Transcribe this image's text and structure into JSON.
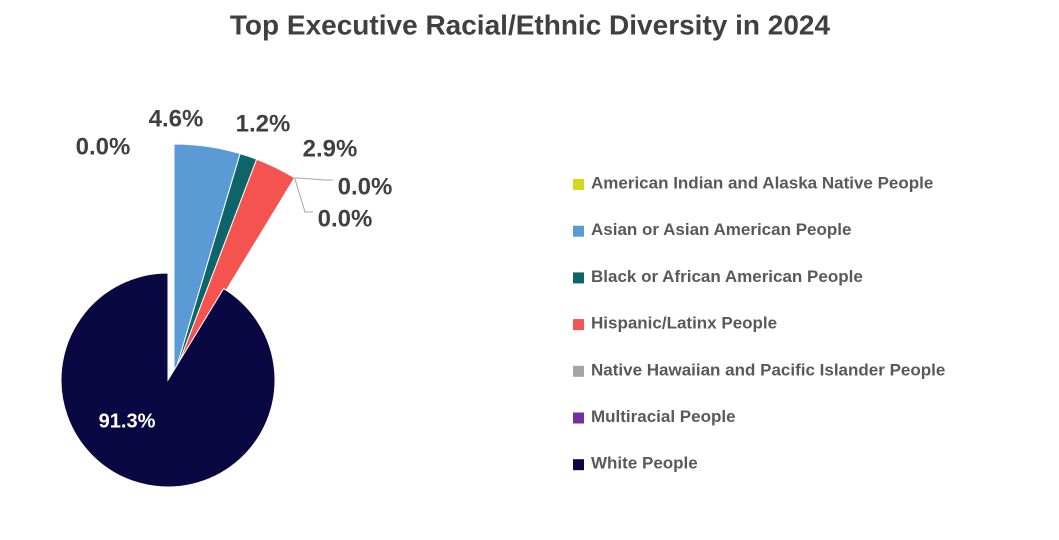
{
  "chart_data": {
    "type": "pie",
    "title": "Top Executive Racial/Ethnic Diversity in 2024",
    "categories": [
      "American Indian and Alaska Native People",
      "Asian or Asian American People",
      "Black or African American People",
      "Hispanic/Latinx People",
      "Native Hawaiian and Pacific Islander People",
      "Multiracial People",
      "White People"
    ],
    "values": [
      0.0,
      4.6,
      1.2,
      2.9,
      0.0,
      0.0,
      91.3
    ],
    "value_labels": [
      "0.0%",
      "4.6%",
      "1.2%",
      "2.9%",
      "0.0%",
      "0.0%",
      "91.3%"
    ],
    "colors": [
      "#d4d81a",
      "#5b9bd5",
      "#0e6468",
      "#f4534f",
      "#a5a5a5",
      "#7030a0",
      "#0a0842"
    ],
    "legend": "right"
  }
}
